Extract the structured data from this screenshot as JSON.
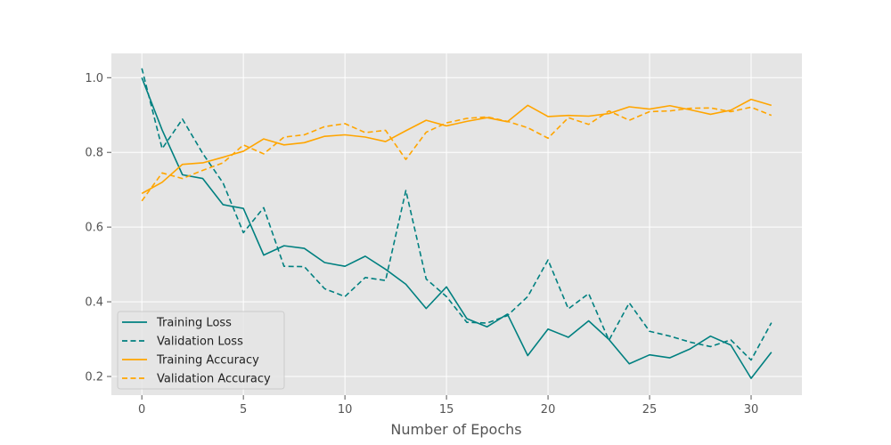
{
  "chart_data": {
    "type": "line",
    "title": "",
    "xlabel": "Number of Epochs",
    "ylabel": "",
    "xlim": [
      -1.5,
      32.5
    ],
    "ylim": [
      0.15,
      1.065
    ],
    "x_ticks": [
      0,
      5,
      10,
      15,
      20,
      25,
      30
    ],
    "y_ticks": [
      0.2,
      0.4,
      0.6,
      0.8,
      1.0
    ],
    "x_tick_labels": [
      "0",
      "5",
      "10",
      "15",
      "20",
      "25",
      "30"
    ],
    "y_tick_labels": [
      "0.2",
      "0.4",
      "0.6",
      "0.8",
      "1.0"
    ],
    "grid": true,
    "legend_position": "lower-left",
    "background": "#e5e5e5",
    "x": [
      0,
      1,
      2,
      3,
      4,
      5,
      6,
      7,
      8,
      9,
      10,
      11,
      12,
      13,
      14,
      15,
      16,
      17,
      18,
      19,
      20,
      21,
      22,
      23,
      24,
      25,
      26,
      27,
      28,
      29,
      30,
      31
    ],
    "series": [
      {
        "name": "Training Loss",
        "color": "#008080",
        "linestyle": "solid",
        "values": [
          1.0,
          0.86,
          0.74,
          0.73,
          0.66,
          0.65,
          0.525,
          0.55,
          0.543,
          0.505,
          0.495,
          0.522,
          0.487,
          0.447,
          0.382,
          0.44,
          0.355,
          0.333,
          0.367,
          0.256,
          0.327,
          0.305,
          0.349,
          0.299,
          0.234,
          0.258,
          0.25,
          0.274,
          0.308,
          0.284,
          0.195,
          0.265
        ]
      },
      {
        "name": "Validation Loss",
        "color": "#008080",
        "linestyle": "dashed",
        "values": [
          1.025,
          0.81,
          0.889,
          0.797,
          0.718,
          0.585,
          0.652,
          0.495,
          0.494,
          0.435,
          0.414,
          0.465,
          0.457,
          0.698,
          0.461,
          0.414,
          0.345,
          0.343,
          0.363,
          0.414,
          0.512,
          0.381,
          0.422,
          0.297,
          0.397,
          0.321,
          0.308,
          0.292,
          0.28,
          0.298,
          0.244,
          0.344
        ]
      },
      {
        "name": "Training Accuracy",
        "color": "#ffa500",
        "linestyle": "solid",
        "values": [
          0.69,
          0.72,
          0.768,
          0.772,
          0.787,
          0.803,
          0.836,
          0.82,
          0.826,
          0.843,
          0.847,
          0.841,
          0.829,
          0.858,
          0.886,
          0.871,
          0.883,
          0.893,
          0.882,
          0.926,
          0.896,
          0.899,
          0.897,
          0.904,
          0.922,
          0.916,
          0.925,
          0.914,
          0.902,
          0.913,
          0.942,
          0.926
        ]
      },
      {
        "name": "Validation Accuracy",
        "color": "#ffa500",
        "linestyle": "dashed",
        "values": [
          0.67,
          0.745,
          0.73,
          0.752,
          0.772,
          0.82,
          0.796,
          0.841,
          0.847,
          0.869,
          0.877,
          0.853,
          0.859,
          0.781,
          0.854,
          0.879,
          0.891,
          0.895,
          0.883,
          0.866,
          0.838,
          0.893,
          0.875,
          0.911,
          0.886,
          0.909,
          0.911,
          0.918,
          0.919,
          0.909,
          0.921,
          0.899
        ]
      }
    ]
  }
}
